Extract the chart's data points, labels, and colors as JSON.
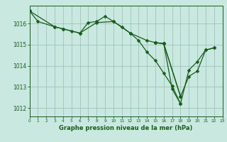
{
  "bg_color": "#c8e8e0",
  "grid_color": "#a0c4b8",
  "line_color": "#1a5c1a",
  "xlabel": "Graphe pression niveau de la mer (hPa)",
  "xlabel_color": "#1a5c1a",
  "ylim": [
    1011.6,
    1016.85
  ],
  "xlim": [
    0,
    23
  ],
  "yticks": [
    1012,
    1013,
    1014,
    1015,
    1016
  ],
  "xticks": [
    0,
    1,
    2,
    3,
    4,
    5,
    6,
    7,
    8,
    9,
    10,
    11,
    12,
    13,
    14,
    15,
    16,
    17,
    18,
    19,
    20,
    21,
    22,
    23
  ],
  "line1_x": [
    0,
    1,
    3,
    4,
    5,
    6,
    7,
    8,
    9,
    10,
    11,
    12,
    13,
    14,
    15,
    16,
    17,
    18
  ],
  "line1_y": [
    1016.6,
    1016.1,
    1015.85,
    1015.75,
    1015.65,
    1015.55,
    1016.05,
    1016.1,
    1016.35,
    1016.1,
    1015.85,
    1015.55,
    1015.2,
    1014.65,
    1014.25,
    1013.65,
    1013.05,
    1012.2
  ],
  "line2_x": [
    0,
    3,
    4,
    6,
    8,
    10,
    12,
    14,
    15,
    16,
    18
  ],
  "line2_y": [
    1016.6,
    1015.85,
    1015.75,
    1015.55,
    1016.05,
    1016.1,
    1015.55,
    1015.2,
    1015.1,
    1015.05,
    1012.55
  ],
  "line3_x": [
    15,
    16,
    17,
    18,
    19,
    20,
    21,
    22
  ],
  "line3_y": [
    1015.1,
    1015.05,
    1012.9,
    1012.2,
    1013.8,
    1014.2,
    1014.75,
    1014.85
  ],
  "line4_x": [
    15,
    16,
    18,
    19,
    20,
    21,
    22
  ],
  "line4_y": [
    1015.1,
    1015.05,
    1012.55,
    1013.5,
    1013.75,
    1014.75,
    1014.85
  ]
}
